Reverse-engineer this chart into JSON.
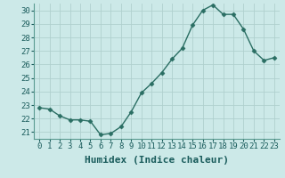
{
  "xlabel": "Humidex (Indice chaleur)",
  "ylabel": "",
  "x": [
    0,
    1,
    2,
    3,
    4,
    5,
    6,
    7,
    8,
    9,
    10,
    11,
    12,
    13,
    14,
    15,
    16,
    17,
    18,
    19,
    20,
    21,
    22,
    23
  ],
  "y": [
    22.8,
    22.7,
    22.2,
    21.9,
    21.9,
    21.8,
    20.8,
    20.9,
    21.4,
    22.5,
    23.9,
    24.6,
    25.4,
    26.4,
    27.2,
    28.9,
    30.0,
    30.4,
    29.7,
    29.7,
    28.6,
    27.0,
    26.3,
    26.5
  ],
  "line_color": "#2a6e63",
  "marker": "D",
  "marker_size": 2.5,
  "bg_color": "#cce9e8",
  "grid_color": "#b0d0ce",
  "plot_bg": "#cce9e8",
  "ylim": [
    20.5,
    30.5
  ],
  "yticks": [
    21,
    22,
    23,
    24,
    25,
    26,
    27,
    28,
    29,
    30
  ],
  "xticks": [
    0,
    1,
    2,
    3,
    4,
    5,
    6,
    7,
    8,
    9,
    10,
    11,
    12,
    13,
    14,
    15,
    16,
    17,
    18,
    19,
    20,
    21,
    22,
    23
  ],
  "tick_label_fontsize": 6.5,
  "xlabel_fontsize": 8,
  "linewidth": 1.0,
  "tick_color": "#1a5c5c",
  "spine_color": "#5a9a90"
}
